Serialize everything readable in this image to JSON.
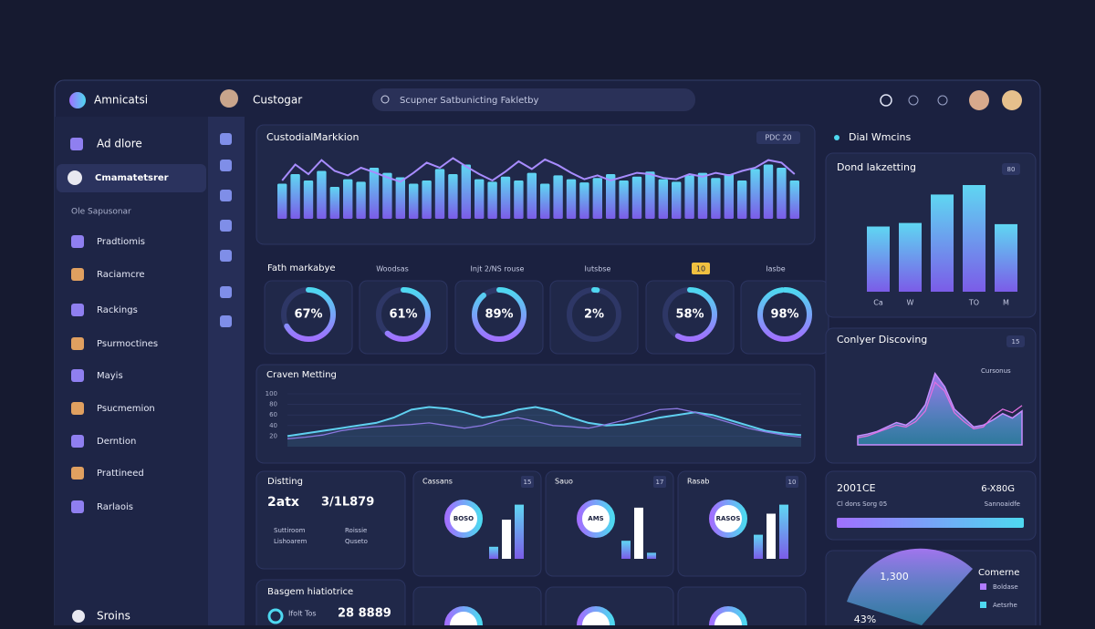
{
  "header": {
    "app_name": "Amnicatsi",
    "user": "Custogar",
    "search": "Scupner Satbunicting Fakletby"
  },
  "sidebar": {
    "items": [
      "Ad dlore",
      "Cmamatetsrer"
    ],
    "section": "Ole Sapusonar",
    "menu": [
      "Pradtiomis",
      "Raciamcre",
      "Rackings",
      "Psurmoctines",
      "Mayis",
      "Psucmemion",
      "Derntion",
      "Prattineed",
      "Rarlaois"
    ],
    "footer": "Sroins"
  },
  "bar_panel": {
    "title": "CustodialMarkkion",
    "badge": "PDC 20",
    "chart": {
      "type": "bar",
      "ylim": [
        0,
        100
      ],
      "values": [
        55,
        70,
        60,
        75,
        50,
        62,
        58,
        80,
        72,
        65,
        55,
        60,
        78,
        70,
        85,
        62,
        58,
        66,
        60,
        72,
        55,
        68,
        62,
        57,
        64,
        70,
        60,
        66,
        74,
        62,
        58,
        68,
        72,
        64,
        70,
        60,
        78,
        85,
        80,
        60
      ],
      "line": [
        60,
        85,
        70,
        92,
        75,
        68,
        80,
        73,
        65,
        58,
        72,
        88,
        80,
        95,
        82,
        70,
        60,
        74,
        90,
        78,
        93,
        84,
        72,
        62,
        68,
        60,
        66,
        72,
        70,
        64,
        62,
        70,
        66,
        72,
        68,
        75,
        80,
        92,
        88,
        70
      ]
    }
  },
  "gauges": {
    "title": "Fath markabye",
    "labels": [
      null,
      "Woodsas",
      "Injt 2/NS rouse",
      "Iutsbse",
      "10",
      "Iasbe"
    ],
    "values": [
      67,
      61,
      89,
      2,
      58,
      98
    ],
    "value_labels": [
      "67%",
      "61%",
      "89%",
      "2%",
      "58%",
      "98%"
    ]
  },
  "line_panel": {
    "title": "Craven Metting",
    "chart": {
      "type": "line",
      "ylim": [
        0,
        100
      ],
      "yticks": [
        20,
        40,
        60,
        80,
        100
      ],
      "series": [
        {
          "color": "#5fd0f0",
          "values": [
            20,
            25,
            30,
            35,
            40,
            45,
            55,
            70,
            75,
            72,
            65,
            55,
            60,
            70,
            75,
            68,
            55,
            45,
            40,
            42,
            48,
            55,
            60,
            65,
            60,
            50,
            40,
            30,
            25,
            22
          ]
        },
        {
          "color": "#8a78e0",
          "values": [
            15,
            18,
            22,
            30,
            35,
            38,
            40,
            42,
            45,
            40,
            35,
            40,
            50,
            55,
            48,
            40,
            38,
            35,
            42,
            50,
            60,
            70,
            72,
            65,
            55,
            45,
            35,
            28,
            22,
            18
          ]
        }
      ]
    }
  },
  "stats": {
    "title": "Distting",
    "left": "2atx",
    "right": "3/1L879",
    "notes": [
      "Suttiroom",
      "Roissie",
      "Lishoarem",
      "Quseto"
    ]
  },
  "stats2": {
    "title": "Basgem hiatiotrice",
    "left": "Ifolt Tos",
    "right": "28 8889"
  },
  "cards": {
    "items": [
      {
        "title": "Cassans",
        "badge": "15",
        "center": "BOSO",
        "bars": [
          20,
          65,
          90
        ]
      },
      {
        "title": "Sauo",
        "badge": "17",
        "center": "AMS",
        "bars": [
          30,
          85,
          10
        ]
      },
      {
        "title": "Rasab",
        "badge": "10",
        "center": "RASOS",
        "bars": [
          40,
          75,
          90
        ]
      }
    ]
  },
  "right_header": "Dial Wmcins",
  "right_bar": {
    "title": "Dond lakzetting",
    "badge": "80",
    "chart": {
      "type": "bar",
      "ylim": [
        0,
        100
      ],
      "categories": [
        "Ca",
        "W",
        null,
        "TO",
        "M"
      ],
      "values": [
        55,
        58,
        82,
        90,
        57
      ]
    }
  },
  "area_panel": {
    "title": "Conlyer Discoving",
    "badge": "15",
    "legend": "Cursonus",
    "chart": {
      "type": "area",
      "ylim": [
        0,
        100
      ],
      "values": [
        10,
        12,
        15,
        20,
        25,
        22,
        30,
        45,
        80,
        65,
        40,
        30,
        20,
        22,
        28,
        35,
        30,
        38
      ],
      "line": [
        8,
        10,
        14,
        18,
        22,
        20,
        26,
        38,
        70,
        60,
        36,
        26,
        18,
        20,
        32,
        40,
        36,
        44
      ]
    }
  },
  "progress": {
    "left": "2001CE",
    "right": "6-X80G",
    "note_left": "Cl dons Sorg 05",
    "note_right": "Sannoaidfe"
  },
  "pie": {
    "title": "Comerne",
    "center_label": "1,300",
    "corner": "43%",
    "legend": [
      "Boldase",
      "Aetsrhe"
    ]
  }
}
